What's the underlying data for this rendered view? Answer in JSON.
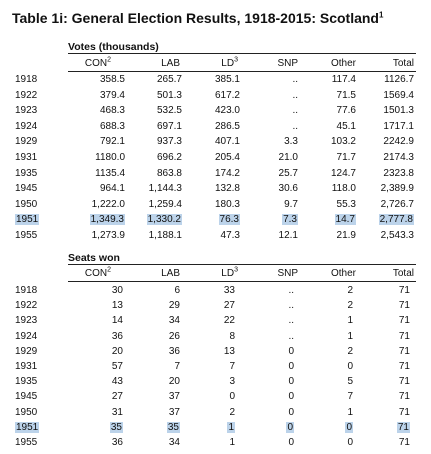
{
  "title": {
    "text": "Table 1i: General Election Results, 1918-2015: Scotland",
    "note": "1"
  },
  "sections": [
    {
      "heading": "Votes (thousands)",
      "columns": [
        {
          "text": "CON",
          "note": "2"
        },
        {
          "text": "LAB"
        },
        {
          "text": "LD",
          "note": "3"
        },
        {
          "text": "SNP"
        },
        {
          "text": "Other"
        },
        {
          "text": "Total"
        }
      ],
      "rows": [
        {
          "year": "1918",
          "cells": [
            "358.5",
            "265.7",
            "385.1",
            "..",
            "117.4",
            "1126.7"
          ]
        },
        {
          "year": "1922",
          "cells": [
            "379.4",
            "501.3",
            "617.2",
            "..",
            "71.5",
            "1569.4"
          ]
        },
        {
          "year": "1923",
          "cells": [
            "468.3",
            "532.5",
            "423.0",
            "..",
            "77.6",
            "1501.3"
          ]
        },
        {
          "year": "1924",
          "cells": [
            "688.3",
            "697.1",
            "286.5",
            "..",
            "45.1",
            "1717.1"
          ]
        },
        {
          "year": "1929",
          "cells": [
            "792.1",
            "937.3",
            "407.1",
            "3.3",
            "103.2",
            "2242.9"
          ]
        },
        {
          "year": "1931",
          "cells": [
            "1180.0",
            "696.2",
            "205.4",
            "21.0",
            "71.7",
            "2174.3"
          ]
        },
        {
          "year": "1935",
          "cells": [
            "1135.4",
            "863.8",
            "174.2",
            "25.7",
            "124.7",
            "2323.8"
          ]
        },
        {
          "year": "1945",
          "cells": [
            "964.1",
            "1,144.3",
            "132.8",
            "30.6",
            "118.0",
            "2,389.9"
          ]
        },
        {
          "year": "1950",
          "cells": [
            "1,222.0",
            "1,259.4",
            "180.3",
            "9.7",
            "55.3",
            "2,726.7"
          ]
        },
        {
          "year": "1951",
          "cells": [
            "1,349.3",
            "1,330.2",
            "76.3",
            "7.3",
            "14.7",
            "2,777.8"
          ],
          "highlighted": true
        },
        {
          "year": "1955",
          "cells": [
            "1,273.9",
            "1,188.1",
            "47.3",
            "12.1",
            "21.9",
            "2,543.3"
          ]
        }
      ]
    },
    {
      "heading": "Seats won",
      "columns": [
        {
          "text": "CON",
          "note": "2"
        },
        {
          "text": "LAB"
        },
        {
          "text": "LD",
          "note": "3"
        },
        {
          "text": "SNP"
        },
        {
          "text": "Other"
        },
        {
          "text": "Total"
        }
      ],
      "rows": [
        {
          "year": "1918",
          "cells": [
            "30",
            "6",
            "33",
            "..",
            "2",
            "71"
          ]
        },
        {
          "year": "1922",
          "cells": [
            "13",
            "29",
            "27",
            "..",
            "2",
            "71"
          ]
        },
        {
          "year": "1923",
          "cells": [
            "14",
            "34",
            "22",
            "..",
            "1",
            "71"
          ]
        },
        {
          "year": "1924",
          "cells": [
            "36",
            "26",
            "8",
            "..",
            "1",
            "71"
          ]
        },
        {
          "year": "1929",
          "cells": [
            "20",
            "36",
            "13",
            "0",
            "2",
            "71"
          ]
        },
        {
          "year": "1931",
          "cells": [
            "57",
            "7",
            "7",
            "0",
            "0",
            "71"
          ]
        },
        {
          "year": "1935",
          "cells": [
            "43",
            "20",
            "3",
            "0",
            "5",
            "71"
          ]
        },
        {
          "year": "1945",
          "cells": [
            "27",
            "37",
            "0",
            "0",
            "7",
            "71"
          ]
        },
        {
          "year": "1950",
          "cells": [
            "31",
            "37",
            "2",
            "0",
            "1",
            "71"
          ]
        },
        {
          "year": "1951",
          "cells": [
            "35",
            "35",
            "1",
            "0",
            "0",
            "71"
          ],
          "highlighted": true
        },
        {
          "year": "1955",
          "cells": [
            "36",
            "34",
            "1",
            "0",
            "0",
            "71"
          ]
        }
      ]
    }
  ]
}
